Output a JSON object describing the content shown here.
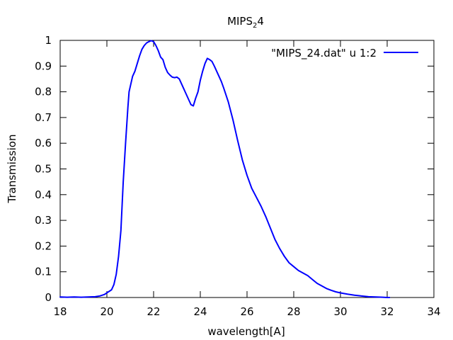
{
  "chart_data": {
    "type": "line",
    "title": {
      "main": "MIPS",
      "subscript": "2",
      "suffix": "4"
    },
    "xlabel": "wavelength[A]",
    "ylabel": "Transmission",
    "xlim": [
      18,
      34
    ],
    "ylim": [
      0,
      1
    ],
    "xticks": [
      18,
      20,
      22,
      24,
      26,
      28,
      30,
      32,
      34
    ],
    "yticks": [
      0,
      0.1,
      0.2,
      0.3,
      0.4,
      0.5,
      0.6,
      0.7,
      0.8,
      0.9,
      1
    ],
    "xtick_labels": [
      "18",
      "20",
      "22",
      "24",
      "26",
      "28",
      "30",
      "32",
      "34"
    ],
    "ytick_labels": [
      "0",
      "0.1",
      "0.2",
      "0.3",
      "0.4",
      "0.5",
      "0.6",
      "0.7",
      "0.8",
      "0.9",
      "1"
    ],
    "grid": false,
    "legend_position": "top-right",
    "series": [
      {
        "name": "\"MIPS_24.dat\" u 1:2",
        "color": "#0000ff",
        "x": [
          18.0,
          18.3,
          18.6,
          18.9,
          19.2,
          19.5,
          19.7,
          19.9,
          20.0,
          20.2,
          20.3,
          20.4,
          20.5,
          20.6,
          20.7,
          20.8,
          20.9,
          20.95,
          21.0,
          21.1,
          21.2,
          21.3,
          21.4,
          21.5,
          21.6,
          21.7,
          21.8,
          21.9,
          22.0,
          22.1,
          22.2,
          22.3,
          22.4,
          22.5,
          22.6,
          22.7,
          22.8,
          22.9,
          23.0,
          23.1,
          23.2,
          23.3,
          23.4,
          23.5,
          23.6,
          23.7,
          23.8,
          23.9,
          24.0,
          24.1,
          24.2,
          24.3,
          24.4,
          24.5,
          24.6,
          24.7,
          24.8,
          24.9,
          25.0,
          25.2,
          25.4,
          25.6,
          25.8,
          26.0,
          26.2,
          26.4,
          26.6,
          26.8,
          27.0,
          27.2,
          27.4,
          27.6,
          27.8,
          28.0,
          28.2,
          28.4,
          28.6,
          28.8,
          29.0,
          29.2,
          29.4,
          29.6,
          29.8,
          30.0,
          30.3,
          30.6,
          30.9,
          31.2,
          31.5,
          31.8,
          32.0,
          32.1
        ],
        "y": [
          0.002,
          0.001,
          0.002,
          0.001,
          0.002,
          0.003,
          0.006,
          0.012,
          0.018,
          0.03,
          0.05,
          0.09,
          0.16,
          0.26,
          0.45,
          0.6,
          0.74,
          0.8,
          0.82,
          0.86,
          0.88,
          0.91,
          0.94,
          0.965,
          0.98,
          0.99,
          0.995,
          0.999,
          0.995,
          0.98,
          0.96,
          0.935,
          0.925,
          0.895,
          0.875,
          0.865,
          0.857,
          0.855,
          0.857,
          0.85,
          0.83,
          0.81,
          0.79,
          0.77,
          0.75,
          0.745,
          0.775,
          0.8,
          0.845,
          0.88,
          0.91,
          0.93,
          0.925,
          0.918,
          0.9,
          0.88,
          0.86,
          0.84,
          0.815,
          0.76,
          0.69,
          0.61,
          0.535,
          0.475,
          0.425,
          0.39,
          0.355,
          0.315,
          0.27,
          0.225,
          0.19,
          0.16,
          0.135,
          0.12,
          0.105,
          0.095,
          0.085,
          0.07,
          0.055,
          0.045,
          0.035,
          0.028,
          0.022,
          0.018,
          0.013,
          0.009,
          0.006,
          0.003,
          0.002,
          0.001,
          0.0,
          0.0
        ]
      }
    ]
  }
}
